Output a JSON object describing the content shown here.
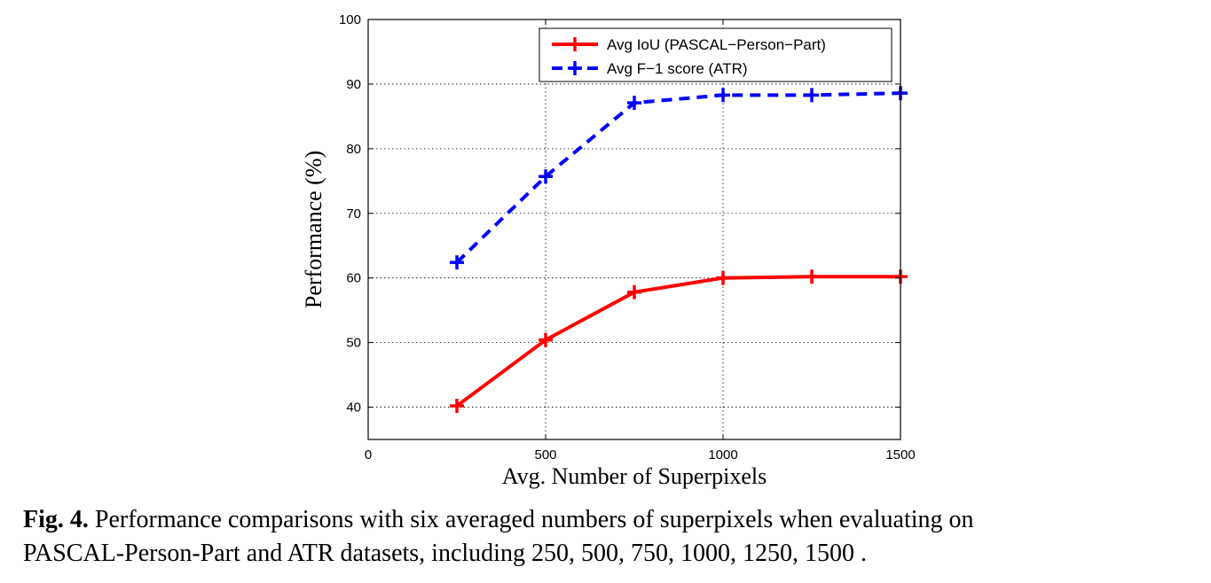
{
  "chart_data": {
    "type": "line",
    "xlabel": "Avg. Number of Superpixels",
    "ylabel": "Performance (%)",
    "xlim": [
      0,
      1500
    ],
    "ylim": [
      35,
      100
    ],
    "xticks": [
      0,
      500,
      1000,
      1500
    ],
    "yticks": [
      40,
      50,
      60,
      70,
      80,
      90,
      100
    ],
    "grid": true,
    "legend_position": "top-right",
    "x": [
      250,
      500,
      750,
      1000,
      1250,
      1500
    ],
    "series": [
      {
        "name": "Avg IoU (PASCAL−Person−Part)",
        "values": [
          40.2,
          50.4,
          57.8,
          60.0,
          60.2,
          60.2
        ],
        "color": "#ff0000",
        "line_style": "solid",
        "marker": "plus"
      },
      {
        "name": "Avg F−1 score (ATR)",
        "values": [
          62.4,
          75.7,
          87.1,
          88.3,
          88.3,
          88.6
        ],
        "color": "#0000ff",
        "line_style": "dashed",
        "marker": "plus"
      }
    ]
  },
  "caption": {
    "label": "Fig. 4.",
    "text_line1": " Performance comparisons with six averaged numbers of superpixels when evaluating on",
    "text_line2": "PASCAL-Person-Part and ATR datasets, including 250, 500, 750, 1000, 1250, 1500 ."
  }
}
